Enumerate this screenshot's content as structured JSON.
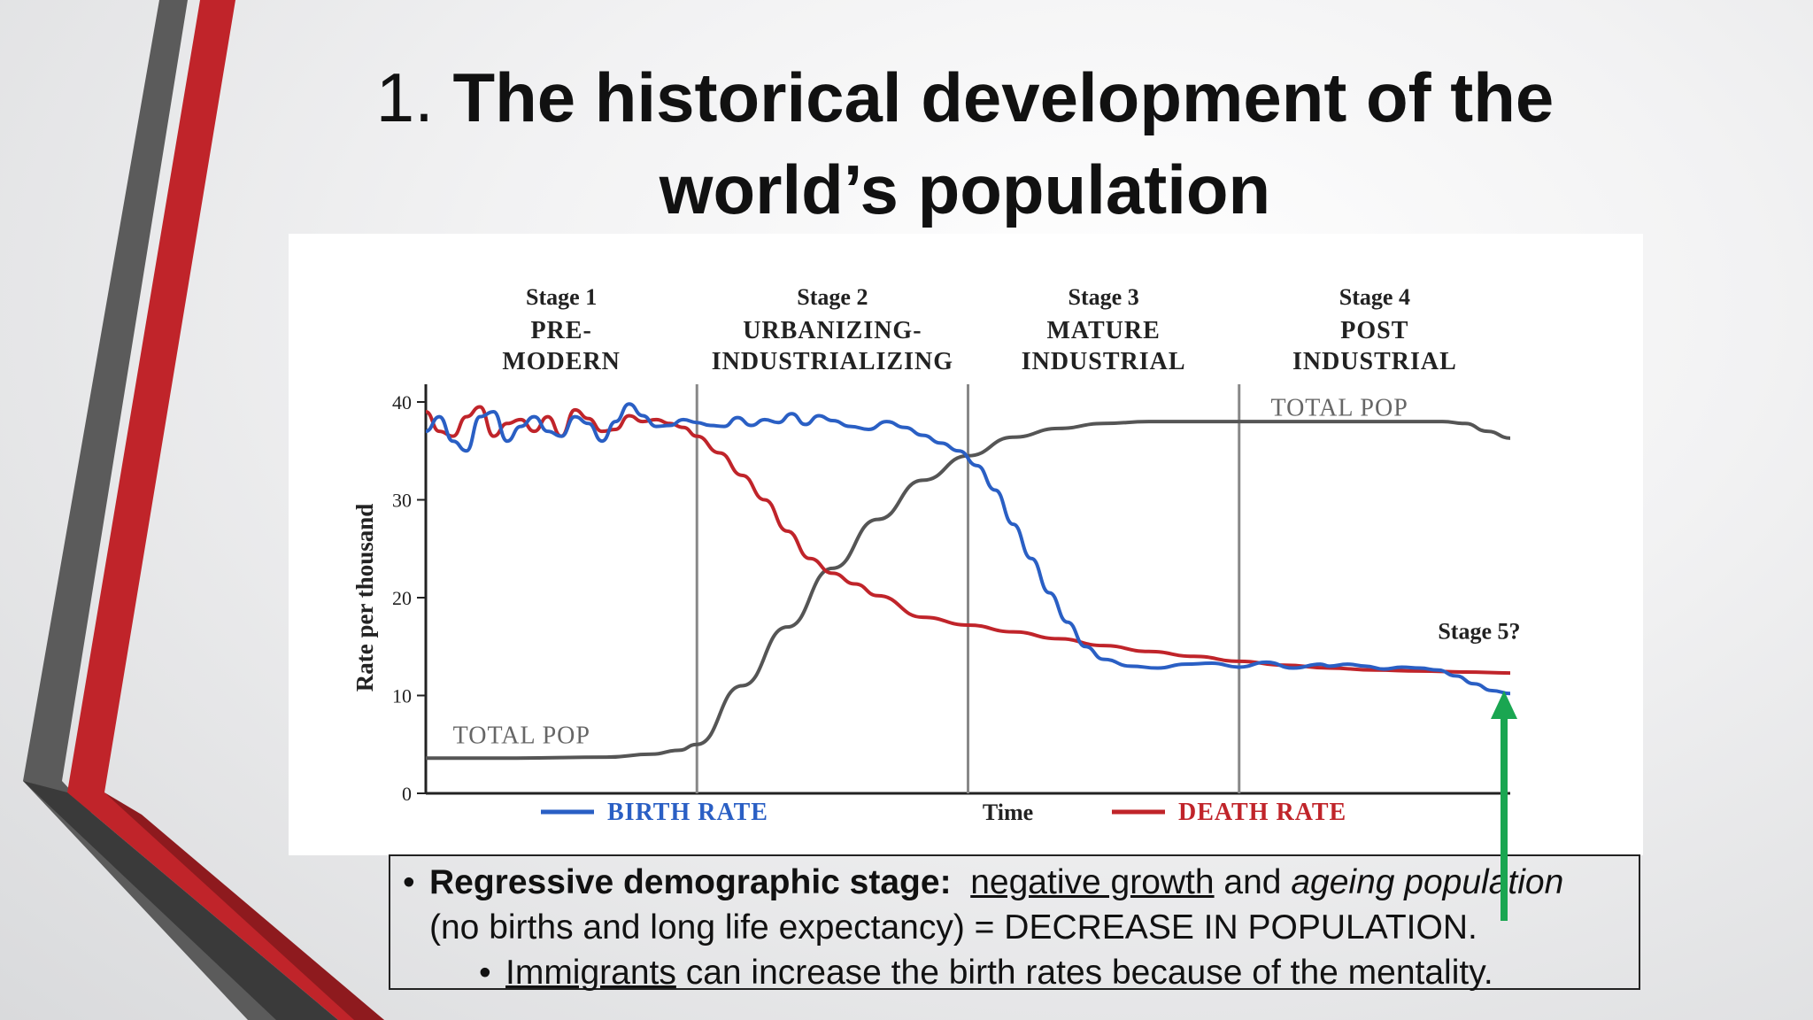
{
  "slide": {
    "title_num": "1.",
    "title_text": "The historical development of the world’s population",
    "colors": {
      "red": "#c0242a",
      "dark": "#444444",
      "green": "#1aa651"
    }
  },
  "caption": {
    "bullet1_bold": "Regressive demographic stage:",
    "bullet1_u": "negative growth",
    "bullet1_and": "and",
    "bullet1_i": "ageing population",
    "line2": "(no births and long life expectancy) = DECREASE IN POPULATION.",
    "bullet2_u": "Immigrants",
    "bullet2_rest": "can increase the birth rates because of the mentality."
  },
  "chart_data": {
    "type": "line",
    "ylabel": "Rate per thousand",
    "xlabel": "Time",
    "ylim": [
      0,
      40
    ],
    "yticks": [
      "0",
      "10",
      "20",
      "30",
      "40"
    ],
    "stages": [
      {
        "num": "Stage 1",
        "l1": "PRE-",
        "l2": "MODERN"
      },
      {
        "num": "Stage 2",
        "l1": "URBANIZING-",
        "l2": "INDUSTRIALIZING"
      },
      {
        "num": "Stage 3",
        "l1": "MATURE",
        "l2": "INDUSTRIAL"
      },
      {
        "num": "Stage 4",
        "l1": "POST",
        "l2": "INDUSTRIAL"
      }
    ],
    "stage5_label": "Stage 5?",
    "total_pop_label": "TOTAL POP",
    "legend": {
      "birth": "BIRTH RATE",
      "death": "DEATH RATE"
    },
    "series": [
      {
        "name": "BIRTH RATE",
        "color": "#2a5fc4",
        "x": [
          0,
          0.3,
          0.6,
          0.9,
          1.2,
          1.5,
          1.8,
          2.1,
          2.4,
          2.7,
          3.0,
          3.3,
          3.6,
          3.9,
          4.2,
          4.5,
          4.8,
          5.1,
          5.4,
          5.7,
          6.0,
          6.3,
          6.6,
          6.9,
          7.2,
          7.5,
          7.8,
          8.1,
          8.4,
          8.7,
          9.0,
          9.4,
          9.8,
          10.2,
          10.6,
          11.0,
          11.4,
          11.8,
          12.2,
          12.6,
          13.0,
          13.4,
          13.8,
          14.2,
          14.6,
          15.0,
          15.6,
          16.2,
          16.8,
          17.4,
          18.0,
          18.6,
          19.2,
          19.8,
          20.0,
          20.4,
          20.8,
          21.2,
          21.6,
          22.0,
          22.4,
          22.8,
          23.2,
          23.6,
          24.0
        ],
        "values": [
          37,
          38.5,
          36,
          35,
          38.5,
          39,
          36,
          37.5,
          38.5,
          37,
          36.5,
          38.5,
          37.8,
          36,
          38,
          39.8,
          38.6,
          37.5,
          37.6,
          38.2,
          37.9,
          37.6,
          37.5,
          38.4,
          37.6,
          38.2,
          37.9,
          38.8,
          37.7,
          38.6,
          38.1,
          37.5,
          37.2,
          38.0,
          37.4,
          36.6,
          35.8,
          35.0,
          33.5,
          31.0,
          27.5,
          24.0,
          20.5,
          17.5,
          15.0,
          13.7,
          13.0,
          12.8,
          13.2,
          13.3,
          12.9,
          13.4,
          12.8,
          13.2,
          13.0,
          13.2,
          13.0,
          12.7,
          12.9,
          12.8,
          12.6,
          12.0,
          11.2,
          10.5,
          10.2
        ]
      },
      {
        "name": "DEATH RATE",
        "color": "#c0242a",
        "x": [
          0,
          0.3,
          0.6,
          0.9,
          1.2,
          1.5,
          1.8,
          2.1,
          2.4,
          2.7,
          3.0,
          3.3,
          3.6,
          3.9,
          4.2,
          4.5,
          4.8,
          5.1,
          5.4,
          5.7,
          6.0,
          6.5,
          7.0,
          7.5,
          8.0,
          8.5,
          9.0,
          9.5,
          10.0,
          11.0,
          12.0,
          13.0,
          14.0,
          15.0,
          16.0,
          17.0,
          18.0,
          19.0,
          20.0,
          21.0,
          22.0,
          23.0,
          24.0
        ],
        "values": [
          39,
          37,
          36.5,
          38.5,
          39.5,
          36.5,
          37.8,
          38.2,
          37,
          38.5,
          36.5,
          39.2,
          38.3,
          37,
          37.2,
          38.6,
          38.0,
          38.2,
          37.8,
          37.4,
          36.5,
          34.8,
          32.5,
          30.0,
          26.8,
          24.0,
          22.5,
          21.4,
          20.2,
          18.0,
          17.2,
          16.5,
          15.8,
          15.1,
          14.5,
          14.0,
          13.5,
          13.1,
          12.8,
          12.6,
          12.5,
          12.4,
          12.3
        ]
      },
      {
        "name": "TOTAL POP",
        "color": "#555555",
        "x": [
          0,
          2,
          4,
          5,
          5.6,
          6.0,
          7,
          8,
          9,
          10,
          11,
          12,
          13,
          14,
          15,
          16,
          17,
          18,
          19,
          20,
          21,
          22,
          22.5,
          23,
          23.5,
          24
        ],
        "values": [
          3.6,
          3.6,
          3.7,
          4.0,
          4.4,
          5.0,
          11,
          17,
          23,
          28,
          32,
          34.5,
          36.4,
          37.3,
          37.8,
          38.0,
          38.0,
          38.0,
          38.0,
          38.0,
          38.0,
          38.0,
          38.0,
          37.8,
          37.0,
          36.3
        ]
      }
    ],
    "stage_dividers": [
      6,
      12,
      18
    ]
  }
}
